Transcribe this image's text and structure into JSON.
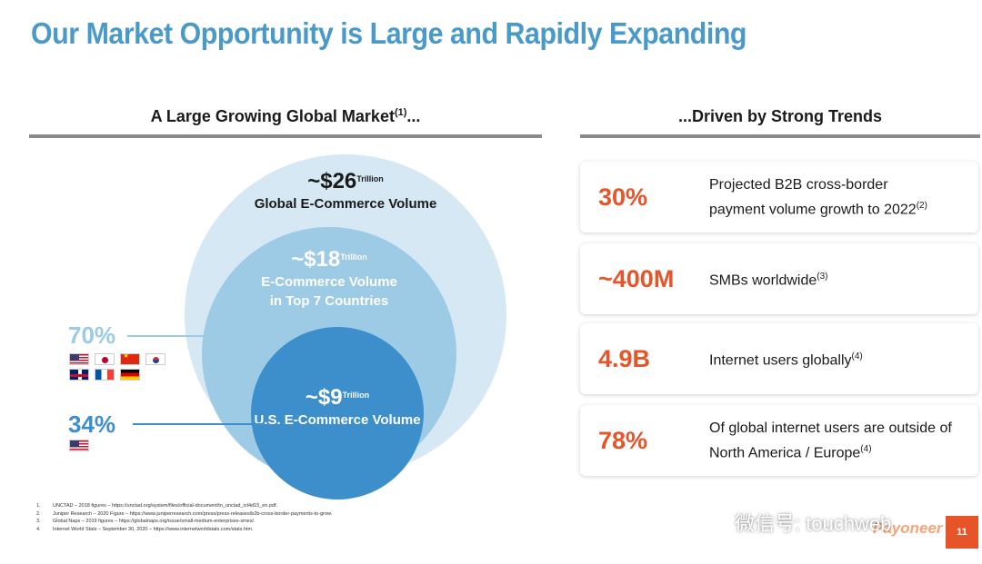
{
  "title": "Our Market Opportunity is Large and Rapidly Expanding",
  "left_section": {
    "heading": "A Large Growing Global Market",
    "heading_sup": "(1)",
    "heading_suffix": "...",
    "circles": {
      "outer": {
        "amount": "~$26",
        "unit": "Trillion",
        "label": "Global E-Commerce Volume"
      },
      "middle": {
        "amount": "~$18",
        "unit": "Trillion",
        "label_line1": "E-Commerce Volume",
        "label_line2": "in Top 7 Countries"
      },
      "inner": {
        "amount": "~$9",
        "unit": "Trillion",
        "label": "U.S. E-Commerce Volume"
      }
    },
    "stats": [
      {
        "value": "70%",
        "color": "#9dcbe6",
        "flags": [
          "us-flag",
          "jp-flag",
          "cn-flag",
          "kr-flag",
          "gb-flag",
          "fr-flag",
          "de-flag"
        ]
      },
      {
        "value": "34%",
        "color": "#3d8fcc",
        "flags": [
          "us-flag"
        ]
      }
    ]
  },
  "right_section": {
    "heading": "...Driven by Strong Trends",
    "cards": [
      {
        "value": "30%",
        "desc_line1": "Projected B2B cross-border",
        "desc_line2": "payment volume growth to 2022",
        "sup": "(2)"
      },
      {
        "value": "~400M",
        "desc_line1": "SMBs worldwide",
        "desc_line2": "",
        "sup": "(3)"
      },
      {
        "value": "4.9B",
        "desc_line1": "Internet users globally",
        "desc_line2": "",
        "sup": "(4)"
      },
      {
        "value": "78%",
        "desc_line1": "Of global internet users are outside of",
        "desc_line2": "North America / Europe",
        "sup": "(4)"
      }
    ]
  },
  "footnotes": [
    {
      "n": "1.",
      "text": "UNCTAD – 2018 figures – https://unctad.org/system/files/official-document/tn_unctad_ict4d15_en.pdf."
    },
    {
      "n": "2.",
      "text": "Juniper Research – 2020 Figure – https://www.juniperresearch.com/press/press-releases/b2b-cross-border-payments-to-grow."
    },
    {
      "n": "3.",
      "text": "Global Naps – 2019 figures – https://globalnaps.org/issue/small-medium-enterprises-smes/."
    },
    {
      "n": "4.",
      "text": "Internet World Stats – September 30, 2020 – https://www.internetworldstats.com/stats.htm."
    }
  ],
  "watermark": "微信号: touchweb",
  "logo": "Payoneer",
  "page_number": "11",
  "colors": {
    "title": "#4a9ac9",
    "accent": "#e8542a"
  }
}
